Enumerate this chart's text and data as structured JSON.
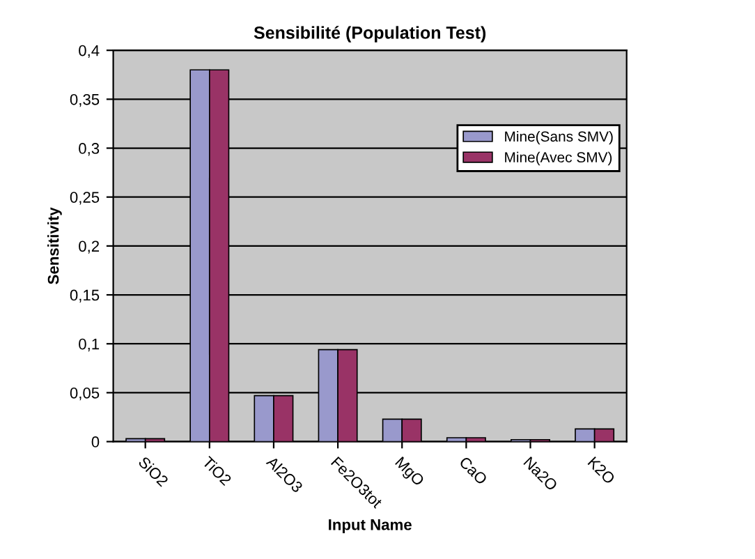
{
  "chart_data": {
    "type": "bar",
    "title": "Sensibilité (Population Test)",
    "xlabel": "Input Name",
    "ylabel": "Sensitivity",
    "categories": [
      "SiO2",
      "TiO2",
      "Al2O3",
      "Fe2O3tot",
      "MgO",
      "CaO",
      "Na2O",
      "K2O"
    ],
    "series": [
      {
        "name": "Mine(Sans SMV)",
        "color": "#9999cc",
        "values": [
          0.003,
          0.38,
          0.047,
          0.094,
          0.023,
          0.004,
          0.002,
          0.013
        ]
      },
      {
        "name": "Mine(Avec SMV)",
        "color": "#993366",
        "values": [
          0.003,
          0.38,
          0.047,
          0.094,
          0.023,
          0.004,
          0.002,
          0.013
        ]
      }
    ],
    "ylim": [
      0,
      0.4
    ],
    "yticks": [
      {
        "value": 0,
        "label": "0"
      },
      {
        "value": 0.05,
        "label": "0,05"
      },
      {
        "value": 0.1,
        "label": "0,1"
      },
      {
        "value": 0.15,
        "label": "0,15"
      },
      {
        "value": 0.2,
        "label": "0,2"
      },
      {
        "value": 0.25,
        "label": "0,25"
      },
      {
        "value": 0.3,
        "label": "0,3"
      },
      {
        "value": 0.35,
        "label": "0,35"
      },
      {
        "value": 0.4,
        "label": "0,4"
      }
    ],
    "grid": "y",
    "legend": "right"
  }
}
